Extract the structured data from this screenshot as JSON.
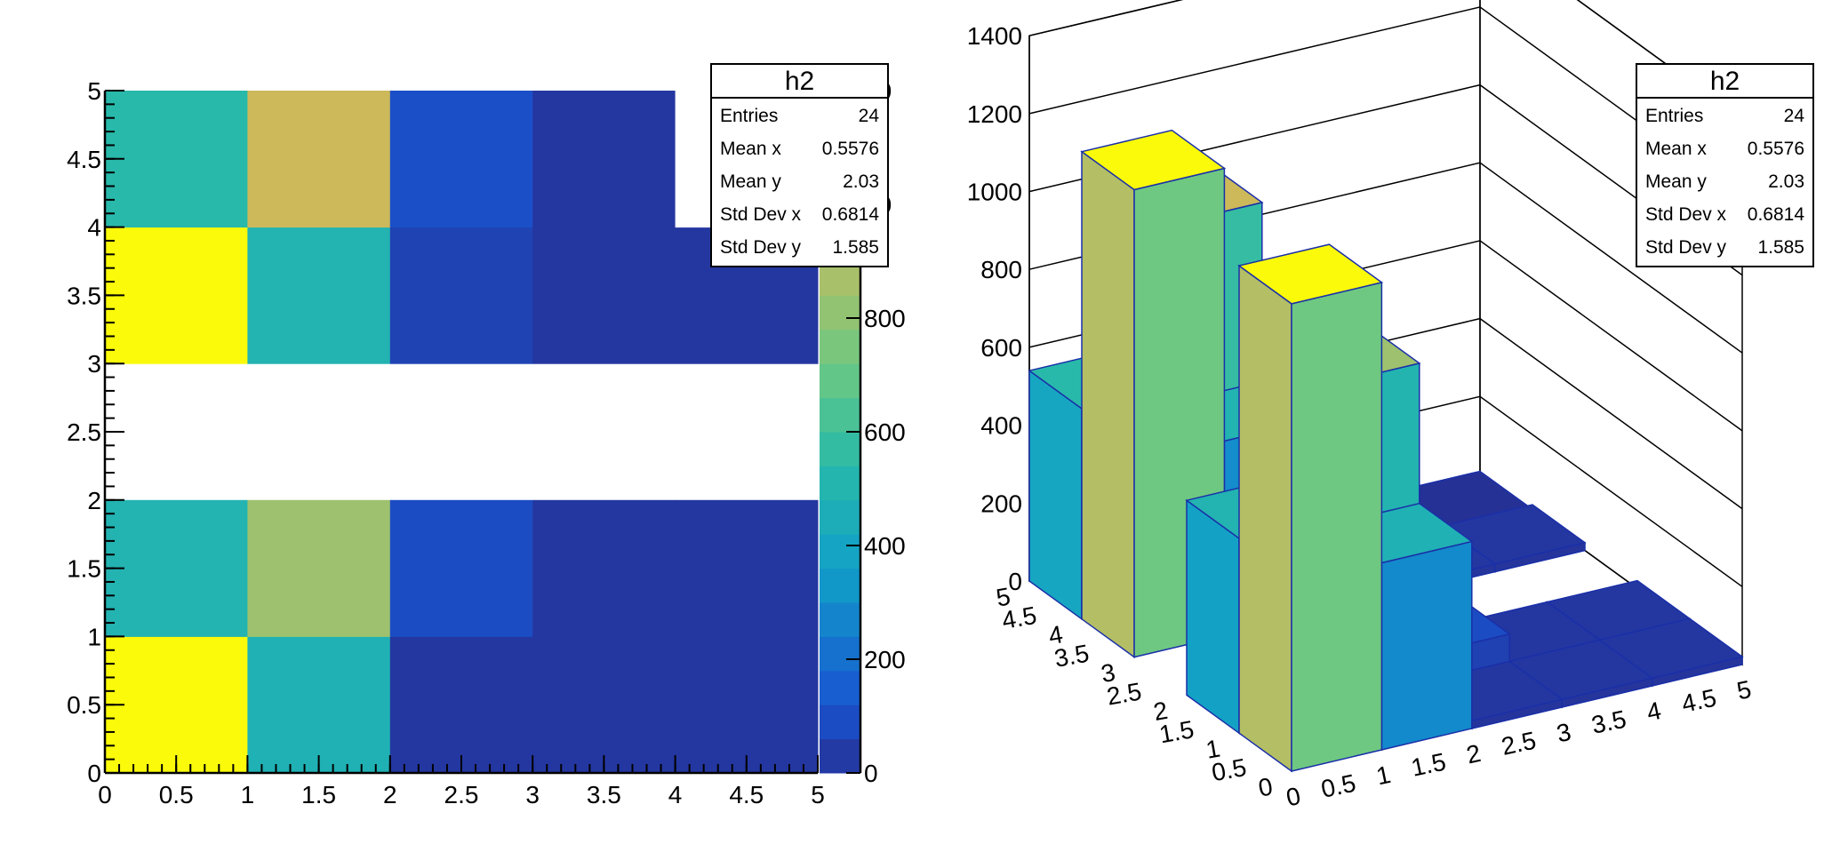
{
  "chart_data": [
    {
      "type": "heatmap",
      "title": "",
      "xlabel": "",
      "ylabel": "",
      "xlim": [
        0,
        5
      ],
      "ylim": [
        0,
        5
      ],
      "x_edges": [
        0,
        1,
        2,
        3,
        4,
        5
      ],
      "y_edges": [
        0,
        1,
        2,
        3,
        4,
        5
      ],
      "x_tick_labels": [
        "0",
        "0.5",
        "1",
        "1.5",
        "2",
        "2.5",
        "3",
        "3.5",
        "4",
        "4.5",
        "5"
      ],
      "y_tick_labels": [
        "0",
        "0.5",
        "1",
        "1.5",
        "2",
        "2.5",
        "3",
        "3.5",
        "4",
        "4.5",
        "5"
      ],
      "values": [
        [
          1200,
          480,
          20,
          20,
          20
        ],
        [
          500,
          840,
          90,
          20,
          20
        ],
        [
          null,
          null,
          null,
          null,
          null
        ],
        [
          1200,
          500,
          60,
          20,
          20
        ],
        [
          540,
          960,
          100,
          20,
          0
        ]
      ],
      "zlim": [
        0,
        1200
      ],
      "palette_axis_labels": [
        "0",
        "200",
        "400",
        "600",
        "800",
        "00",
        "20"
      ],
      "palette_axis_values": [
        0,
        200,
        400,
        600,
        800,
        1000,
        1200
      ],
      "palette": "viridis-like (dark blue → cyan → green → yellow)"
    },
    {
      "type": "bar3d",
      "title": "",
      "xlim": [
        0,
        5
      ],
      "ylim": [
        0,
        5
      ],
      "zlim": [
        0,
        1400
      ],
      "x_tick_labels": [
        "0",
        "0.5",
        "1",
        "1.5",
        "2",
        "2.5",
        "3",
        "3.5",
        "4",
        "4.5",
        "5"
      ],
      "y_tick_labels": [
        "0",
        "0.5",
        "1",
        "1.5",
        "2",
        "2.5",
        "3",
        "3.5",
        "4",
        "4.5",
        "5"
      ],
      "z_tick_labels": [
        "0",
        "200",
        "400",
        "600",
        "800",
        "1000",
        "1200",
        "1400"
      ],
      "z_ticks": [
        0,
        200,
        400,
        600,
        800,
        1000,
        1200,
        1400
      ]
    }
  ],
  "stats_boxes": [
    {
      "title": "h2",
      "rows": [
        {
          "label": "Entries",
          "value": "24"
        },
        {
          "label": "Mean x",
          "value": "0.5576"
        },
        {
          "label": "Mean y",
          "value": "2.03"
        },
        {
          "label": "Std Dev x",
          "value": "0.6814"
        },
        {
          "label": "Std Dev y",
          "value": "1.585"
        }
      ]
    },
    {
      "title": "h2",
      "rows": [
        {
          "label": "Entries",
          "value": "24"
        },
        {
          "label": "Mean x",
          "value": "0.5576"
        },
        {
          "label": "Mean y",
          "value": "2.03"
        },
        {
          "label": "Std Dev x",
          "value": "0.6814"
        },
        {
          "label": "Std Dev y",
          "value": "1.585"
        }
      ]
    }
  ],
  "colors": {
    "background": "#ffffff",
    "axis": "#000000",
    "bar_edge": "#1a2fa8",
    "empty_bin": "#ffffff"
  }
}
